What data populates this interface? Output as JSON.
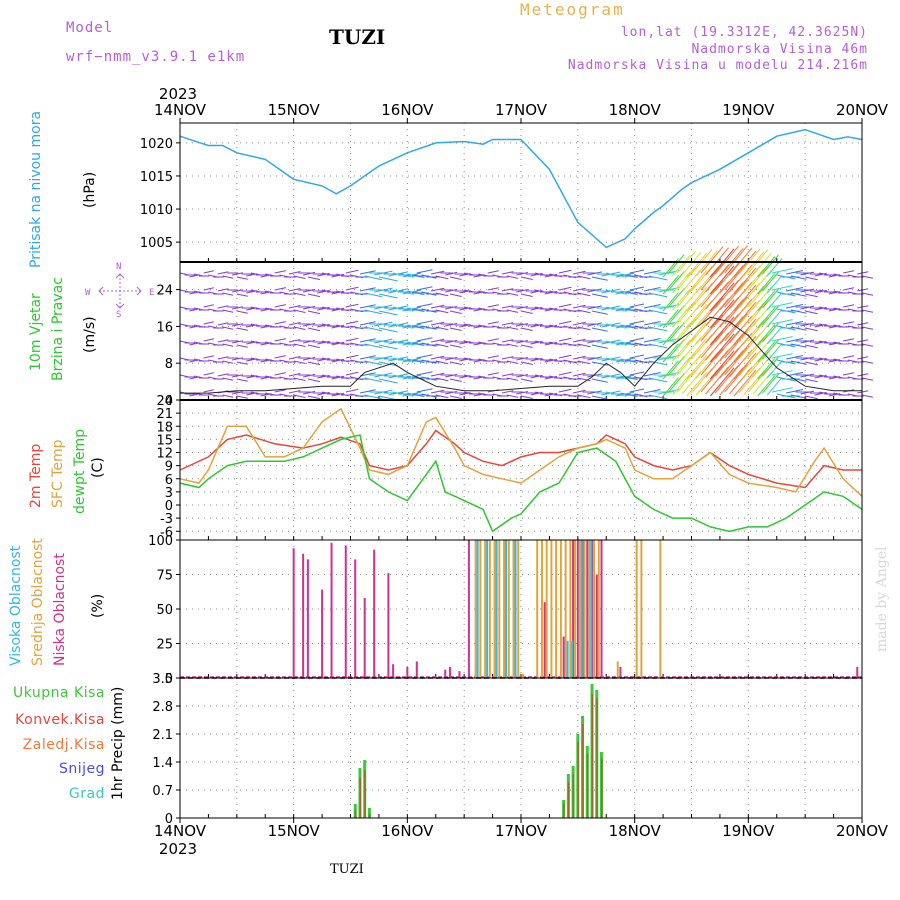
{
  "header": {
    "model_label": "Model",
    "model_name": "wrf−nmm_v3.9.1 e1km",
    "station": "TUZI",
    "meteogram": "Meteogram",
    "lonlat": "lon,lat (19.3312E, 42.3625N)",
    "alt": "Nadmorska Visina 46m",
    "alt_model": "Nadmorska Visina u modelu 214.216m"
  },
  "footer": {
    "station": "TUZI",
    "made_by": "made by Angel"
  },
  "time_axis": {
    "year": "2023",
    "ticks": [
      "14NOV",
      "15NOV",
      "16NOV",
      "17NOV",
      "18NOV",
      "19NOV",
      "20NOV"
    ]
  },
  "colors": {
    "pressure": "#2ea8e8",
    "t2m": "#e8463a",
    "tsfc": "#e2a43a",
    "dew": "#2ec82e",
    "cloud_high": "#30b8e8",
    "cloud_mid": "#e2a43a",
    "cloud_low": "#d0308e",
    "precip_total": "#3cc83c",
    "precip_conv": "#e8463a",
    "precip_frz": "#f07a3a",
    "snow": "#4a4ae8",
    "hail": "#3cc8c8",
    "wind_purple": "#8a3ad8"
  },
  "panels": {
    "pressure": {
      "ylabel": "Pritisak na nivou mora",
      "unit": "(hPa)"
    },
    "wind": {
      "ylabel1": "10m Vjetar",
      "ylabel2": "Brzina i Pravac",
      "unit": "(m/s)",
      "compass_n": "N",
      "compass_s": "S",
      "compass_w": "W",
      "compass_e": "E"
    },
    "temp": {
      "label1": "2m Temp",
      "label2": "SFC Temp",
      "label3": "dewpt Temp",
      "unit": "(C)"
    },
    "cloud": {
      "label1": "Visoka Oblacnost",
      "label2": "Srednja Oblacnost",
      "label3": "Niska Oblacnost",
      "unit": "(%)"
    },
    "precip": {
      "ylabel": "1hr Precip (mm)",
      "legend": [
        "Ukupna Kisa",
        "Konvek.Kisa",
        "Zaledj.Kisa",
        "Snijeg",
        "Grad"
      ]
    }
  },
  "chart_data": [
    {
      "type": "line",
      "name": "pressure",
      "x_unit": "hours from 14NOV 00UTC",
      "ylim": [
        1002,
        1023
      ],
      "yticks": [
        1005,
        1010,
        1015,
        1020
      ],
      "grid": true,
      "series": [
        {
          "x": [
            0,
            3,
            6,
            9,
            12,
            18,
            24,
            30,
            33,
            36,
            40,
            42,
            48,
            54,
            60,
            64,
            66,
            72,
            78,
            84,
            90,
            94,
            96,
            100,
            102,
            106,
            108,
            114,
            120,
            126,
            132,
            138,
            141,
            144
          ],
          "values": [
            1021,
            1020.3,
            1019.6,
            1019.6,
            1018.5,
            1017.5,
            1014.5,
            1013.5,
            1012.3,
            1013.5,
            1015.5,
            1016.5,
            1018.5,
            1020,
            1020.2,
            1019.8,
            1020.5,
            1020.5,
            1016,
            1008,
            1004.2,
            1005.5,
            1007,
            1009.5,
            1010.5,
            1013,
            1014,
            1016,
            1018.5,
            1021,
            1022,
            1020.5,
            1020.9,
            1020.5
          ]
        }
      ]
    },
    {
      "type": "scatter",
      "name": "wind_10m",
      "ylim": [
        0,
        30
      ],
      "yticks": [
        0,
        8,
        16,
        24
      ],
      "grid": true,
      "series": [
        {
          "name": "wind speed",
          "x": [
            0,
            6,
            12,
            18,
            24,
            30,
            33,
            36,
            39,
            42,
            45,
            48,
            54,
            60,
            66,
            72,
            78,
            84,
            87,
            90,
            93,
            96,
            100,
            104,
            108,
            112,
            116,
            120,
            126,
            132,
            138,
            144
          ],
          "values": [
            1.5,
            1.5,
            2,
            2,
            2.5,
            3,
            3,
            3,
            6,
            7,
            8,
            6,
            3,
            2,
            2,
            2.5,
            3,
            3,
            5,
            8,
            6,
            3,
            8,
            12,
            15,
            18,
            17,
            14,
            7,
            3,
            2,
            2
          ]
        }
      ]
    },
    {
      "type": "line",
      "name": "temperature",
      "ylim": [
        -8,
        24
      ],
      "yticks": [
        -6,
        -3,
        0,
        3,
        6,
        9,
        12,
        15,
        18,
        21,
        24
      ],
      "grid": true,
      "series": [
        {
          "name": "2m Temp",
          "x": [
            0,
            6,
            10,
            14,
            20,
            26,
            30,
            34,
            38,
            40,
            44,
            48,
            52,
            54,
            58,
            60,
            64,
            68,
            72,
            76,
            80,
            84,
            88,
            90,
            94,
            96,
            100,
            104,
            108,
            112,
            116,
            120,
            126,
            132,
            136,
            140,
            144
          ],
          "values": [
            8,
            11,
            15,
            16,
            14,
            13,
            14,
            15.5,
            14,
            9,
            8,
            9,
            14,
            17,
            14,
            12,
            10,
            9,
            11,
            12,
            12,
            13,
            14,
            16,
            14,
            11,
            9,
            8,
            9,
            12,
            9,
            7,
            5,
            4,
            9,
            8,
            8
          ]
        },
        {
          "name": "SFC Temp",
          "x": [
            0,
            4,
            6,
            10,
            14,
            18,
            22,
            26,
            30,
            34,
            38,
            40,
            44,
            48,
            52,
            54,
            58,
            60,
            64,
            68,
            72,
            76,
            80,
            84,
            88,
            90,
            94,
            96,
            100,
            104,
            108,
            112,
            116,
            120,
            126,
            130,
            134,
            136,
            140,
            144
          ],
          "values": [
            6,
            5,
            8,
            18,
            18,
            11,
            11,
            13,
            19,
            22,
            13,
            8,
            7,
            9,
            19,
            20,
            13,
            9,
            7,
            6,
            5,
            8,
            11,
            13,
            14,
            15,
            13,
            8,
            6,
            6,
            9,
            12,
            7,
            5,
            4,
            3,
            10,
            13,
            6,
            2
          ]
        },
        {
          "name": "dewpt Temp",
          "x": [
            0,
            4,
            6,
            10,
            14,
            18,
            22,
            26,
            30,
            34,
            38,
            40,
            44,
            48,
            52,
            54,
            56,
            60,
            64,
            66,
            70,
            72,
            76,
            80,
            84,
            88,
            92,
            96,
            100,
            104,
            108,
            112,
            116,
            120,
            124,
            128,
            132,
            136,
            140,
            144
          ],
          "values": [
            5,
            4,
            6,
            9,
            10,
            10,
            10,
            11,
            13,
            15,
            16,
            6,
            3,
            1,
            7,
            10,
            3,
            1,
            -1,
            -6,
            -3,
            -2,
            3,
            5,
            12,
            13,
            10,
            2,
            -1,
            -3,
            -3,
            -5,
            -6,
            -5,
            -5,
            -3,
            0,
            3,
            2,
            -1
          ]
        }
      ]
    },
    {
      "type": "bar",
      "name": "cloud_cover",
      "ylim": [
        0,
        100
      ],
      "yticks": [
        0,
        25,
        50,
        75,
        100
      ],
      "grid": true,
      "series": [
        {
          "name": "Niska Oblacnost",
          "x": [
            24,
            26,
            27,
            30,
            32,
            35,
            37,
            39,
            41,
            44,
            45,
            48,
            50,
            56,
            57,
            59,
            61,
            77,
            81,
            83,
            84,
            85,
            86,
            87,
            88,
            89,
            93,
            143
          ],
          "values": [
            94,
            90,
            86,
            64,
            98,
            96,
            86,
            58,
            93,
            76,
            10,
            8,
            12,
            6,
            8,
            5,
            100,
            55,
            30,
            100,
            100,
            100,
            100,
            100,
            75,
            100,
            8,
            8
          ]
        },
        {
          "name": "Srednja Oblacnost",
          "x": [
            62,
            63,
            64,
            65,
            66,
            67,
            68,
            69,
            70,
            71,
            72,
            75,
            76,
            77,
            78,
            79,
            80,
            81,
            82,
            83,
            84,
            85,
            86,
            87,
            88,
            92,
            96,
            97,
            101
          ],
          "values": [
            100,
            100,
            100,
            100,
            100,
            100,
            100,
            100,
            100,
            100,
            3,
            100,
            100,
            100,
            100,
            100,
            100,
            100,
            100,
            100,
            100,
            100,
            100,
            100,
            100,
            12,
            100,
            100,
            100
          ]
        },
        {
          "name": "Visoka Oblacnost",
          "x": [
            62,
            64,
            66,
            68,
            70,
            81,
            82,
            84,
            86
          ],
          "values": [
            100,
            100,
            100,
            100,
            100,
            27,
            27,
            100,
            100
          ]
        }
      ]
    },
    {
      "type": "bar",
      "name": "precip_1hr",
      "ylim": [
        0,
        3.5
      ],
      "yticks": [
        0,
        0.7,
        1.4,
        2.1,
        2.8,
        3.5
      ],
      "grid": true,
      "series": [
        {
          "name": "Ukupna Kisa",
          "x": [
            37,
            38,
            39,
            40,
            81,
            82,
            83,
            84,
            85,
            86,
            87,
            88,
            89,
            90,
            91
          ],
          "values": [
            0.35,
            1.25,
            1.45,
            0.25,
            0.45,
            1.1,
            1.3,
            2.1,
            2.55,
            1.8,
            3.35,
            3.2,
            1.65,
            0,
            0
          ]
        },
        {
          "name": "Konvek.Kisa",
          "x": [
            37,
            38,
            39,
            40,
            81,
            82,
            83,
            84,
            85,
            86,
            87,
            88,
            89
          ],
          "values": [
            0.2,
            1.0,
            1.2,
            0.1,
            0.35,
            0.9,
            1.1,
            1.9,
            2.35,
            1.6,
            3.1,
            3.0,
            1.5
          ]
        }
      ]
    }
  ]
}
